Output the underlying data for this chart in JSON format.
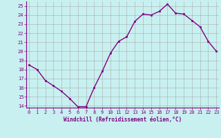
{
  "x": [
    0,
    1,
    2,
    3,
    4,
    5,
    6,
    7,
    8,
    9,
    10,
    11,
    12,
    13,
    14,
    15,
    16,
    17,
    18,
    19,
    20,
    21,
    22,
    23
  ],
  "y": [
    18.5,
    18.0,
    16.8,
    16.2,
    15.6,
    14.8,
    13.9,
    13.9,
    16.0,
    17.8,
    19.8,
    21.1,
    21.6,
    23.3,
    24.1,
    24.0,
    24.4,
    25.2,
    24.2,
    24.1,
    23.4,
    22.7,
    21.1,
    20.0
  ],
  "line_color": "#800080",
  "marker": "s",
  "marker_size": 2.0,
  "bg_color": "#c8f0f0",
  "grid_color": "#aaaaaa",
  "xlabel": "Windchill (Refroidissement éolien,°C)",
  "ylim_min": 13.8,
  "ylim_max": 25.5,
  "xlim_min": -0.3,
  "xlim_max": 23.3,
  "yticks": [
    14,
    15,
    16,
    17,
    18,
    19,
    20,
    21,
    22,
    23,
    24,
    25
  ],
  "xticks": [
    0,
    1,
    2,
    3,
    4,
    5,
    6,
    7,
    8,
    9,
    10,
    11,
    12,
    13,
    14,
    15,
    16,
    17,
    18,
    19,
    20,
    21,
    22,
    23
  ],
  "title_color": "#800080",
  "axis_color": "#800080",
  "tick_color": "#800080",
  "spine_color": "#800080",
  "xlabel_fontsize": 5.5,
  "tick_fontsize": 5.0,
  "linewidth": 1.0
}
